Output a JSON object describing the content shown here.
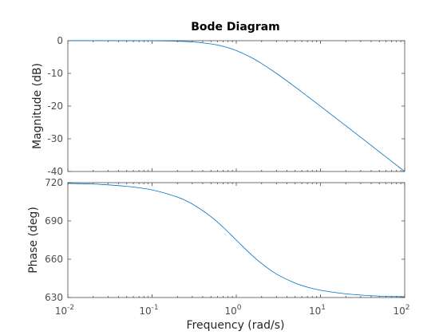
{
  "chart_data": {
    "type": "line",
    "title": "Bode Diagram",
    "xlabel": "Frequency  (rad/s)",
    "xscale": "log",
    "xlim": [
      0.01,
      100
    ],
    "x_ticks": [
      {
        "base": "10",
        "exp": "-2"
      },
      {
        "base": "10",
        "exp": "-1"
      },
      {
        "base": "10",
        "exp": "0"
      },
      {
        "base": "10",
        "exp": "1"
      },
      {
        "base": "10",
        "exp": "2"
      }
    ],
    "panels": [
      {
        "ylabel": "Magnitude (dB)",
        "ylim": [
          -40,
          0
        ],
        "yticks": [
          0,
          -10,
          -20,
          -30,
          -40
        ],
        "ytick_labels": [
          "0",
          "-10",
          "-20",
          "-30",
          "-40"
        ],
        "series": [
          {
            "x": [
              0.01,
              0.02,
              0.05,
              0.1,
              0.2,
              0.3,
              0.5,
              0.7,
              1,
              1.5,
              2,
              3,
              5,
              7,
              10,
              20,
              50,
              100
            ],
            "y": [
              0,
              0,
              -0.01,
              -0.04,
              -0.17,
              -0.37,
              -0.97,
              -1.73,
              -3.01,
              -5.12,
              -6.99,
              -10.0,
              -14.15,
              -17.0,
              -20.04,
              -26.02,
              -33.98,
              -40.0
            ]
          }
        ]
      },
      {
        "ylabel": "Phase (deg)",
        "ylim": [
          630,
          720
        ],
        "yticks": [
          720,
          690,
          660,
          630
        ],
        "ytick_labels": [
          "720",
          "690",
          "660",
          "630"
        ],
        "series": [
          {
            "x": [
              0.01,
              0.02,
              0.05,
              0.1,
              0.2,
              0.3,
              0.5,
              0.7,
              1,
              1.5,
              2,
              3,
              5,
              7,
              10,
              20,
              50,
              100
            ],
            "y": [
              719.4,
              718.9,
              717.1,
              714.3,
              708.7,
              703.3,
              693.4,
              685.0,
              675.0,
              663.7,
              656.6,
              648.4,
              641.3,
              638.1,
              635.7,
              632.9,
              631.1,
              630.6
            ]
          }
        ]
      }
    ],
    "grid": false,
    "color": "#0072bd"
  }
}
